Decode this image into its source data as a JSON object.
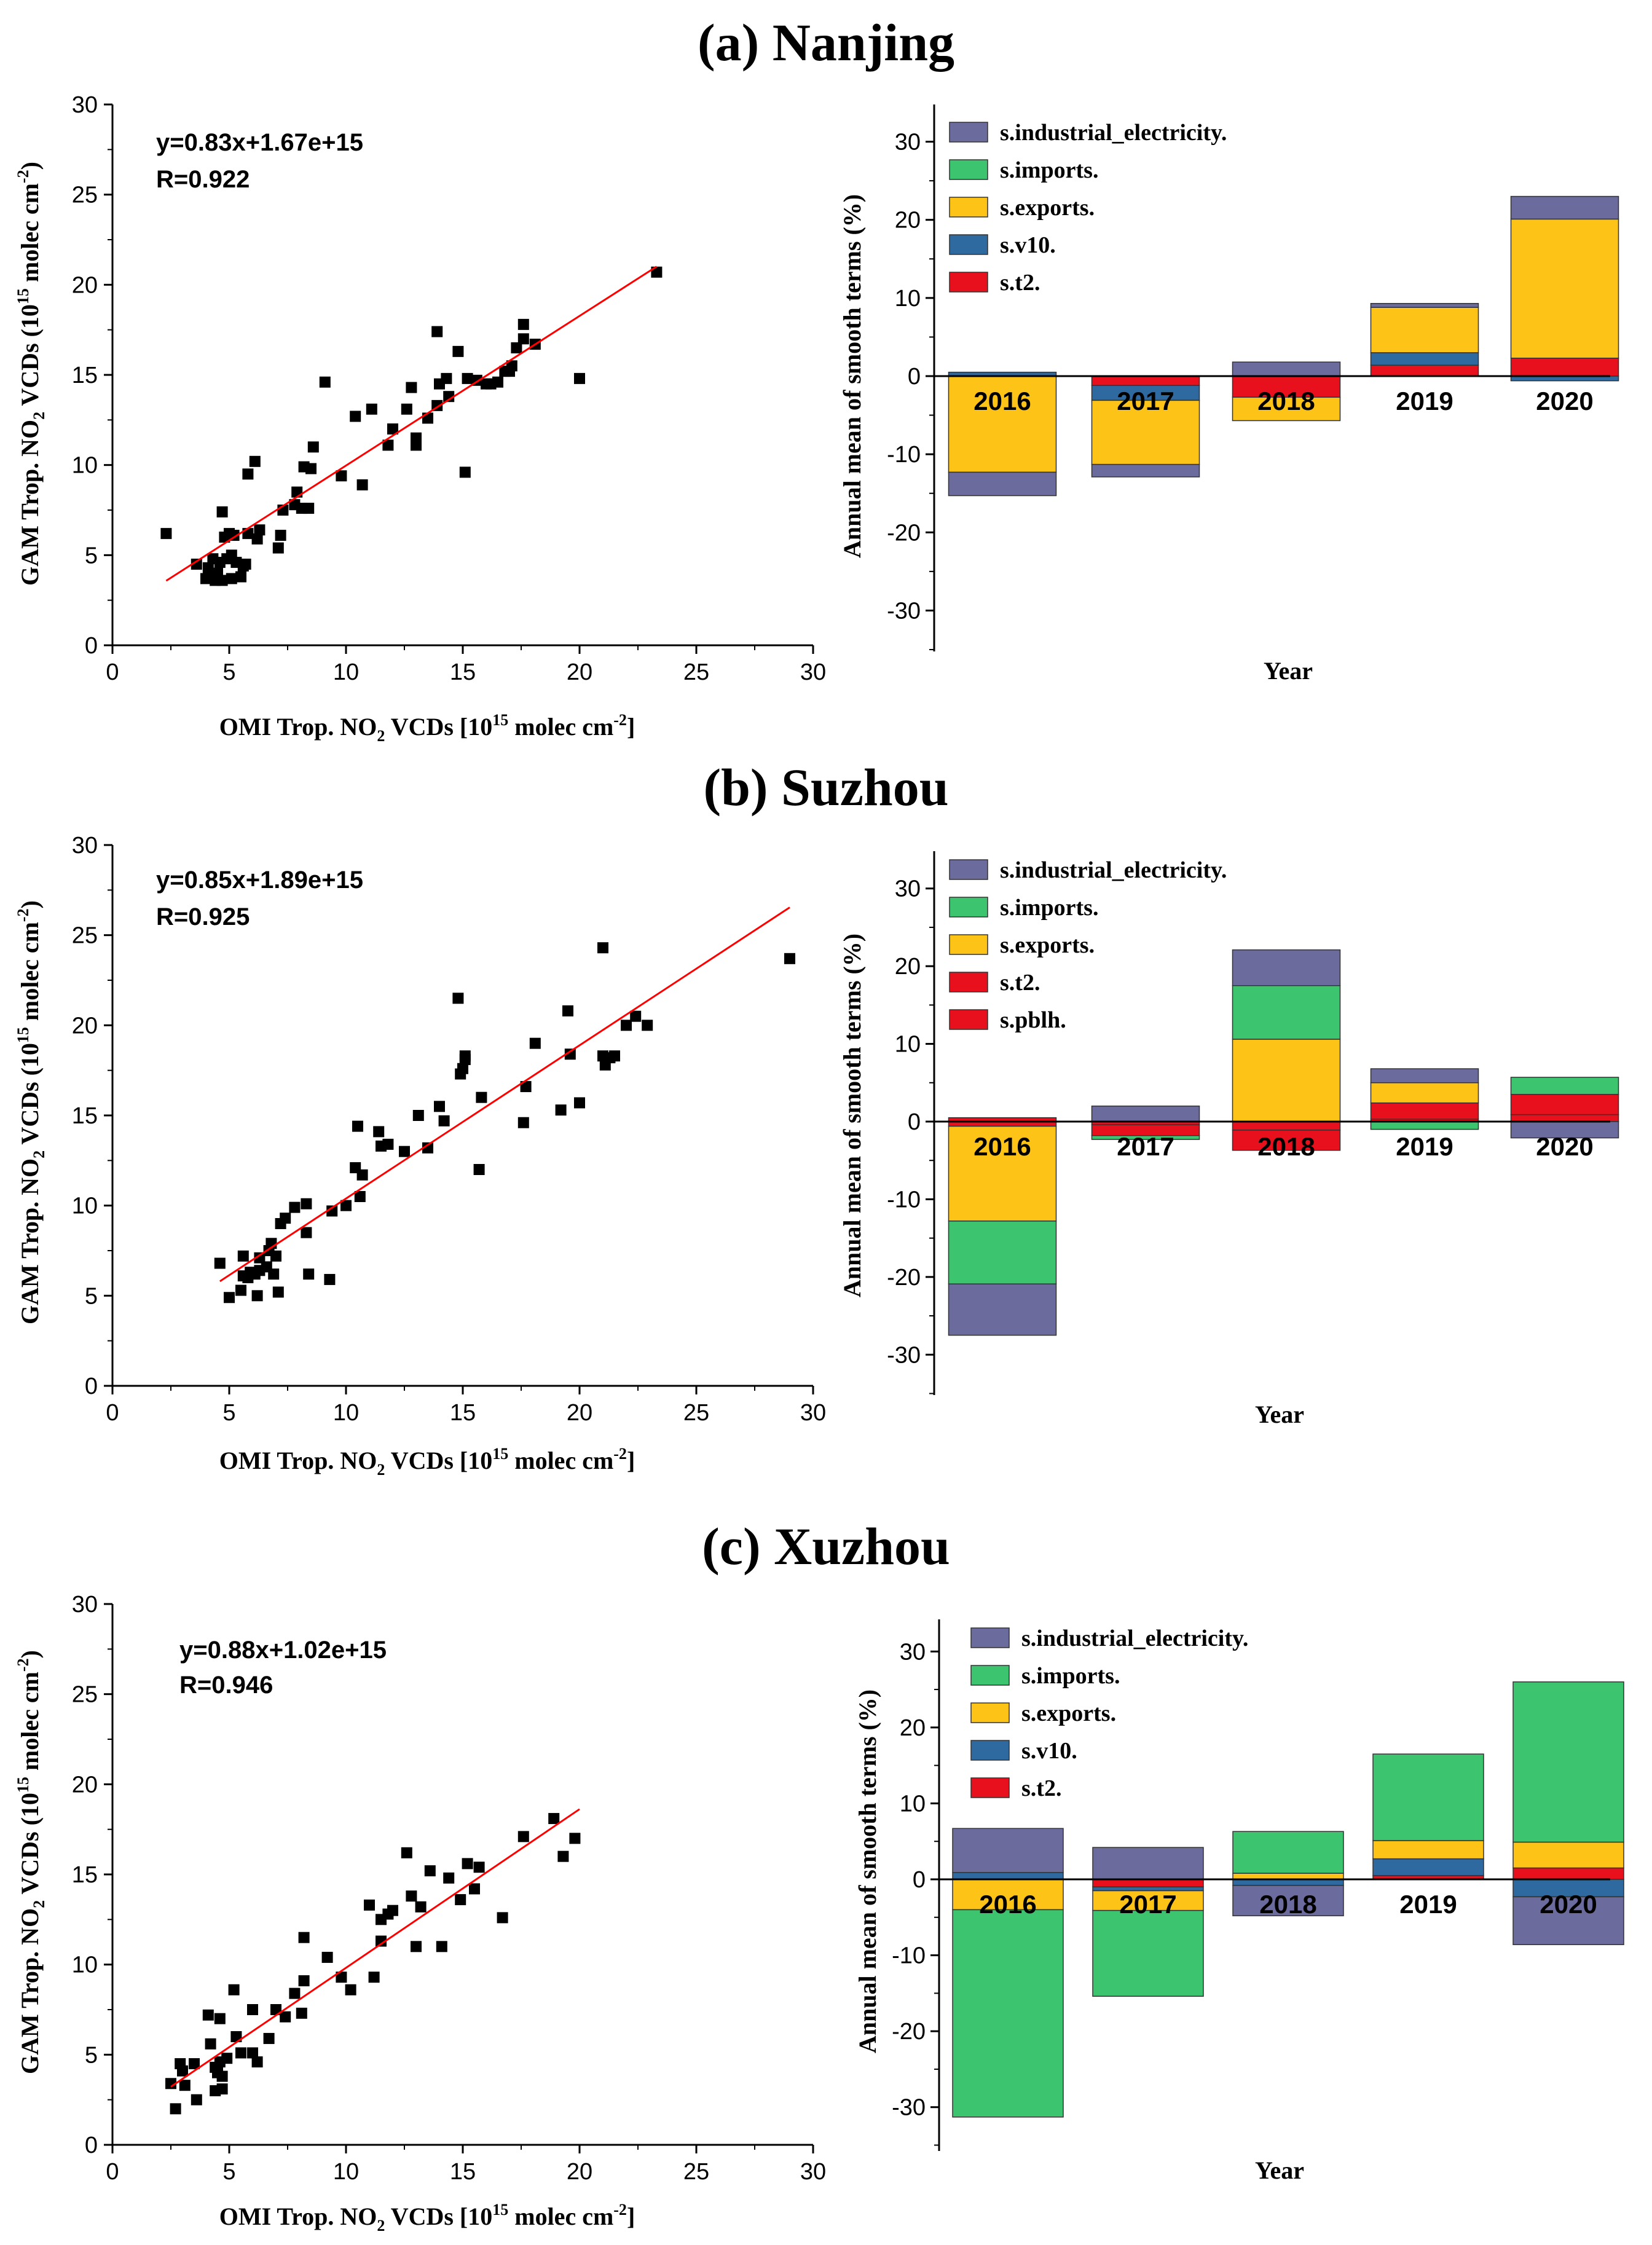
{
  "figure": {
    "panels": [
      {
        "title": "(a) Nanjing"
      },
      {
        "title": "(b) Suzhou"
      },
      {
        "title": "(c) Xuzhou"
      }
    ]
  },
  "colors": {
    "scatter_point": "#000000",
    "fit_line": "#ff0000",
    "s.industrial_electricity.": "#6b6b9e",
    "s.imports.": "#3cc46e",
    "s.exports.": "#fdc317",
    "s.v10.": "#2e69a0",
    "s.t2.": "#e8101c",
    "s.pblh.": "#e8101c"
  },
  "chart_data": [
    {
      "type": "scatter",
      "panel": "(a) Nanjing",
      "xlabel": "OMI Trop. NO₂ VCDs [10¹⁵ molec cm⁻²]",
      "ylabel": "GAM Trop. NO₂ VCDs (10¹⁵ molec cm⁻²)",
      "xlim": [
        0,
        30
      ],
      "ylim": [
        0,
        30
      ],
      "xticks": [
        0,
        5,
        10,
        15,
        20,
        25,
        30
      ],
      "yticks": [
        0,
        5,
        10,
        15,
        20,
        25,
        30
      ],
      "equation": "y=0.83x+1.67e+15",
      "r_label": "R=0.922",
      "fit": {
        "slope": 0.83,
        "intercept": 1.67,
        "x_range": [
          2.3,
          23.3
        ]
      },
      "points": [
        [
          2.3,
          6.2
        ],
        [
          3.6,
          4.5
        ],
        [
          4.0,
          3.7
        ],
        [
          4.1,
          4.3
        ],
        [
          4.2,
          3.9
        ],
        [
          4.3,
          4.8
        ],
        [
          4.4,
          3.6
        ],
        [
          4.5,
          4.0
        ],
        [
          4.6,
          4.6
        ],
        [
          4.7,
          3.6
        ],
        [
          4.7,
          7.4
        ],
        [
          4.8,
          6.0
        ],
        [
          4.9,
          4.8
        ],
        [
          5.0,
          6.2
        ],
        [
          5.1,
          5.0
        ],
        [
          5.1,
          3.7
        ],
        [
          5.2,
          6.1
        ],
        [
          5.3,
          4.6
        ],
        [
          5.5,
          3.8
        ],
        [
          5.6,
          4.4
        ],
        [
          5.7,
          4.5
        ],
        [
          5.8,
          6.2
        ],
        [
          5.8,
          9.5
        ],
        [
          6.1,
          10.2
        ],
        [
          6.2,
          5.9
        ],
        [
          6.3,
          6.4
        ],
        [
          7.1,
          5.4
        ],
        [
          7.2,
          6.1
        ],
        [
          7.3,
          7.5
        ],
        [
          7.8,
          7.8
        ],
        [
          7.9,
          8.5
        ],
        [
          8.1,
          7.6
        ],
        [
          8.2,
          9.9
        ],
        [
          8.4,
          7.6
        ],
        [
          8.5,
          9.8
        ],
        [
          8.6,
          11.0
        ],
        [
          9.1,
          14.6
        ],
        [
          9.8,
          9.4
        ],
        [
          10.4,
          12.7
        ],
        [
          10.7,
          8.9
        ],
        [
          11.1,
          13.1
        ],
        [
          11.8,
          11.1
        ],
        [
          12.0,
          12.0
        ],
        [
          12.6,
          13.1
        ],
        [
          12.8,
          14.3
        ],
        [
          13.0,
          11.5
        ],
        [
          13.0,
          11.1
        ],
        [
          13.5,
          12.6
        ],
        [
          13.9,
          17.4
        ],
        [
          13.9,
          13.3
        ],
        [
          14.0,
          14.5
        ],
        [
          14.3,
          14.8
        ],
        [
          14.4,
          13.8
        ],
        [
          14.8,
          16.3
        ],
        [
          15.1,
          9.6
        ],
        [
          15.2,
          14.8
        ],
        [
          15.6,
          14.7
        ],
        [
          16.0,
          14.5
        ],
        [
          16.2,
          14.5
        ],
        [
          16.5,
          14.6
        ],
        [
          16.8,
          15.2
        ],
        [
          17.0,
          15.2
        ],
        [
          17.1,
          15.5
        ],
        [
          17.3,
          16.5
        ],
        [
          17.6,
          17.8
        ],
        [
          17.6,
          17.0
        ],
        [
          18.1,
          16.7
        ],
        [
          20.0,
          14.8
        ],
        [
          23.3,
          20.7
        ]
      ]
    },
    {
      "type": "bar",
      "stacked": true,
      "panel": "(a) Nanjing",
      "xlabel": "Year",
      "ylabel": "Annual mean of smooth terms (%)",
      "ylim": [
        -35,
        35
      ],
      "yticks": [
        -30,
        -20,
        -10,
        0,
        10,
        20,
        30
      ],
      "categories": [
        "2016",
        "2017",
        "2018",
        "2019",
        "2020"
      ],
      "legend": [
        "s.industrial_electricity.",
        "s.imports.",
        "s.exports.",
        "s.v10.",
        "s.t2."
      ],
      "series": [
        {
          "name": "s.t2.",
          "values": [
            0.0,
            -1.2,
            -2.7,
            1.4,
            2.3
          ]
        },
        {
          "name": "s.v10.",
          "values": [
            0.5,
            -1.9,
            0.0,
            1.6,
            -0.6
          ]
        },
        {
          "name": "s.exports.",
          "values": [
            -12.3,
            -8.2,
            -3.0,
            5.8,
            17.8
          ]
        },
        {
          "name": "s.imports.",
          "values": [
            0.0,
            0.0,
            0.0,
            0.0,
            0.0
          ]
        },
        {
          "name": "s.industrial_electricity.",
          "values": [
            -3.0,
            -1.6,
            1.8,
            0.5,
            2.9
          ]
        }
      ]
    },
    {
      "type": "scatter",
      "panel": "(b) Suzhou",
      "xlabel": "OMI Trop. NO₂ VCDs [10¹⁵ molec cm⁻²]",
      "ylabel": "GAM Trop. NO₂ VCDs (10¹⁵ molec cm⁻²)",
      "xlim": [
        0,
        30
      ],
      "ylim": [
        0,
        30
      ],
      "xticks": [
        0,
        5,
        10,
        15,
        20,
        25,
        30
      ],
      "yticks": [
        0,
        5,
        10,
        15,
        20,
        25,
        30
      ],
      "equation": "y=0.85x+1.89e+15",
      "r_label": "R=0.925",
      "fit": {
        "slope": 0.85,
        "intercept": 1.89,
        "x_range": [
          4.6,
          29.0
        ]
      },
      "points": [
        [
          4.6,
          6.8
        ],
        [
          5.0,
          4.9
        ],
        [
          5.5,
          5.3
        ],
        [
          5.6,
          7.2
        ],
        [
          5.6,
          6.1
        ],
        [
          5.8,
          6.0
        ],
        [
          5.9,
          6.3
        ],
        [
          6.1,
          6.2
        ],
        [
          6.2,
          5.0
        ],
        [
          6.3,
          6.4
        ],
        [
          6.3,
          7.1
        ],
        [
          6.6,
          6.6
        ],
        [
          6.7,
          7.5
        ],
        [
          6.8,
          7.9
        ],
        [
          6.9,
          6.2
        ],
        [
          7.0,
          7.2
        ],
        [
          7.1,
          5.2
        ],
        [
          7.2,
          9.0
        ],
        [
          7.4,
          9.3
        ],
        [
          7.8,
          9.9
        ],
        [
          8.3,
          10.1
        ],
        [
          8.3,
          8.5
        ],
        [
          8.4,
          6.2
        ],
        [
          9.3,
          5.9
        ],
        [
          9.4,
          9.7
        ],
        [
          10.0,
          10.0
        ],
        [
          10.4,
          12.1
        ],
        [
          10.5,
          14.4
        ],
        [
          10.6,
          10.5
        ],
        [
          10.7,
          11.7
        ],
        [
          11.4,
          14.1
        ],
        [
          11.5,
          13.3
        ],
        [
          11.8,
          13.4
        ],
        [
          12.5,
          13.0
        ],
        [
          13.1,
          15.0
        ],
        [
          13.5,
          13.2
        ],
        [
          14.0,
          15.5
        ],
        [
          14.2,
          14.7
        ],
        [
          14.8,
          21.5
        ],
        [
          14.9,
          17.3
        ],
        [
          15.0,
          17.6
        ],
        [
          15.1,
          18.1
        ],
        [
          15.1,
          18.3
        ],
        [
          15.7,
          12.0
        ],
        [
          15.8,
          16.0
        ],
        [
          17.6,
          14.6
        ],
        [
          17.7,
          16.6
        ],
        [
          18.1,
          19.0
        ],
        [
          19.2,
          15.3
        ],
        [
          19.5,
          20.8
        ],
        [
          19.6,
          18.4
        ],
        [
          20.0,
          15.7
        ],
        [
          21.0,
          24.3
        ],
        [
          21.0,
          18.3
        ],
        [
          21.1,
          17.8
        ],
        [
          21.3,
          18.2
        ],
        [
          21.5,
          18.3
        ],
        [
          22.0,
          20.0
        ],
        [
          22.4,
          20.5
        ],
        [
          22.9,
          20.0
        ],
        [
          29.0,
          23.7
        ]
      ]
    },
    {
      "type": "bar",
      "stacked": true,
      "panel": "(b) Suzhou",
      "xlabel": "Year",
      "ylabel": "Annual mean of smooth terms (%)",
      "ylim": [
        -35,
        35
      ],
      "yticks": [
        -30,
        -20,
        -10,
        0,
        10,
        20,
        30
      ],
      "categories": [
        "2016",
        "2017",
        "2018",
        "2019",
        "2020"
      ],
      "legend": [
        "s.industrial_electricity.",
        "s.imports.",
        "s.exports.",
        "s.t2.",
        "s.pblh."
      ],
      "series": [
        {
          "name": "s.pblh.",
          "values": [
            0.5,
            -0.4,
            -1.1,
            0.3,
            0.9
          ]
        },
        {
          "name": "s.t2.",
          "values": [
            -0.6,
            -1.4,
            -2.6,
            2.1,
            2.6
          ]
        },
        {
          "name": "s.exports.",
          "values": [
            -12.2,
            0.0,
            10.6,
            2.6,
            0.0
          ]
        },
        {
          "name": "s.imports.",
          "values": [
            -8.1,
            -0.5,
            6.9,
            -1.0,
            2.2
          ]
        },
        {
          "name": "s.industrial_electricity.",
          "values": [
            -6.6,
            2.0,
            4.6,
            1.8,
            -2.1
          ]
        }
      ]
    },
    {
      "type": "scatter",
      "panel": "(c) Xuzhou",
      "xlabel": "OMI Trop. NO₂ VCDs [10¹⁵ molec cm⁻²]",
      "ylabel": "GAM Trop. NO₂ VCDs (10¹⁵ molec cm⁻²)",
      "xlim": [
        0,
        30
      ],
      "ylim": [
        0,
        30
      ],
      "xticks": [
        0,
        5,
        10,
        15,
        20,
        25,
        30
      ],
      "yticks": [
        0,
        5,
        10,
        15,
        20,
        25,
        30
      ],
      "equation": "y=0.88x+1.02e+15",
      "r_label": "R=0.946",
      "fit": {
        "slope": 0.88,
        "intercept": 1.02,
        "x_range": [
          2.5,
          20.0
        ]
      },
      "points": [
        [
          2.5,
          3.4
        ],
        [
          2.7,
          2.0
        ],
        [
          2.9,
          4.5
        ],
        [
          3.0,
          4.1
        ],
        [
          3.1,
          3.3
        ],
        [
          3.5,
          4.5
        ],
        [
          3.6,
          2.5
        ],
        [
          4.1,
          7.2
        ],
        [
          4.2,
          5.6
        ],
        [
          4.4,
          3.0
        ],
        [
          4.4,
          4.3
        ],
        [
          4.5,
          4.0
        ],
        [
          4.6,
          7.0
        ],
        [
          4.6,
          4.6
        ],
        [
          4.7,
          3.8
        ],
        [
          4.7,
          3.1
        ],
        [
          4.9,
          4.8
        ],
        [
          5.2,
          8.6
        ],
        [
          5.3,
          6.0
        ],
        [
          5.5,
          5.1
        ],
        [
          6.0,
          5.1
        ],
        [
          6.2,
          4.6
        ],
        [
          6.0,
          7.5
        ],
        [
          6.7,
          5.9
        ],
        [
          7.0,
          7.5
        ],
        [
          7.4,
          7.1
        ],
        [
          7.8,
          8.4
        ],
        [
          8.1,
          7.3
        ],
        [
          8.2,
          11.5
        ],
        [
          8.2,
          9.1
        ],
        [
          9.2,
          10.4
        ],
        [
          9.8,
          9.3
        ],
        [
          10.2,
          8.6
        ],
        [
          11.0,
          13.3
        ],
        [
          11.2,
          9.3
        ],
        [
          11.5,
          12.5
        ],
        [
          11.5,
          11.3
        ],
        [
          11.8,
          12.8
        ],
        [
          12.0,
          13.0
        ],
        [
          12.6,
          16.2
        ],
        [
          12.8,
          13.8
        ],
        [
          13.0,
          11.0
        ],
        [
          13.2,
          13.2
        ],
        [
          13.6,
          15.2
        ],
        [
          14.1,
          11.0
        ],
        [
          14.4,
          14.8
        ],
        [
          14.9,
          13.6
        ],
        [
          15.2,
          15.6
        ],
        [
          15.5,
          14.2
        ],
        [
          15.7,
          15.4
        ],
        [
          16.7,
          12.6
        ],
        [
          17.6,
          17.1
        ],
        [
          18.9,
          18.1
        ],
        [
          19.3,
          16.0
        ],
        [
          19.8,
          17.0
        ]
      ]
    },
    {
      "type": "bar",
      "stacked": true,
      "panel": "(c) Xuzhou",
      "xlabel": "Year",
      "ylabel": "Annual mean of smooth terms (%)",
      "ylim": [
        -35,
        35
      ],
      "yticks": [
        -30,
        -20,
        -10,
        0,
        10,
        20,
        30
      ],
      "categories": [
        "2016",
        "2017",
        "2018",
        "2019",
        "2020"
      ],
      "legend": [
        "s.industrial_electricity.",
        "s.imports.",
        "s.exports.",
        "s.v10.",
        "s.t2."
      ],
      "series": [
        {
          "name": "s.t2.",
          "values": [
            0.0,
            -1.0,
            0.0,
            0.5,
            1.5
          ]
        },
        {
          "name": "s.v10.",
          "values": [
            0.9,
            -0.5,
            -0.8,
            2.2,
            -2.3
          ]
        },
        {
          "name": "s.exports.",
          "values": [
            -4.0,
            -2.6,
            0.8,
            2.4,
            3.4
          ]
        },
        {
          "name": "s.imports.",
          "values": [
            -27.3,
            -11.3,
            5.5,
            11.4,
            21.1
          ]
        },
        {
          "name": "s.industrial_electricity.",
          "values": [
            5.8,
            4.2,
            -4.0,
            0.0,
            -6.3
          ]
        }
      ]
    }
  ]
}
